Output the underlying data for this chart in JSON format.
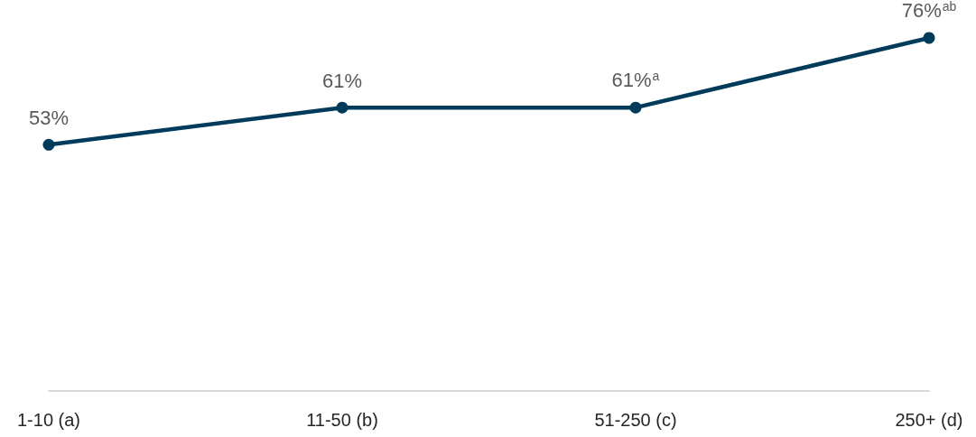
{
  "chart_data": {
    "type": "line",
    "categories": [
      "1-10 (a)",
      "11-50 (b)",
      "51-250 (c)",
      "250+ (d)"
    ],
    "series": [
      {
        "color": "#003b5c",
        "values": [
          53,
          61,
          61,
          76
        ],
        "value_labels": [
          "53%",
          "61%",
          "61%$^{a}$",
          "76%$^{ab}$"
        ]
      }
    ],
    "tick_labels": "x",
    "grid": false,
    "marker": "circle",
    "line_style": "solid"
  }
}
